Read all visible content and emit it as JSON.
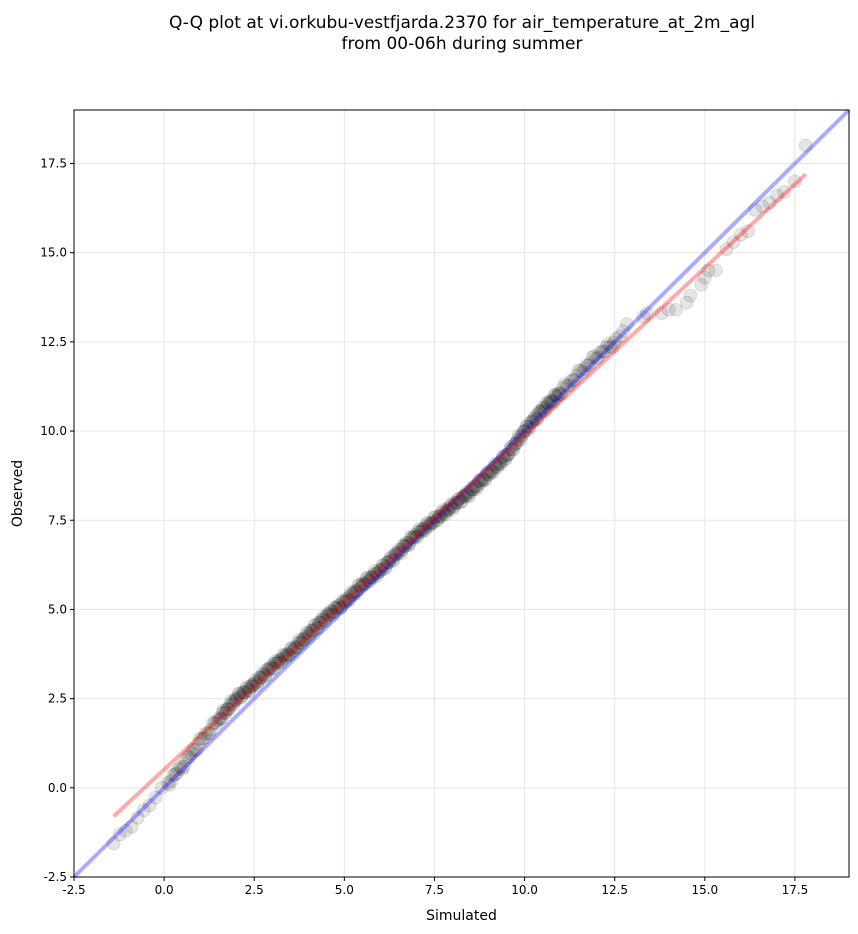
{
  "chart_data": {
    "type": "scatter",
    "title_line1": "Q-Q plot at vi.orkubu-vestfjarda.2370 for air_temperature_at_2m_agl",
    "title_line2": "from 00-06h during summer",
    "xlabel": "Simulated",
    "ylabel": "Observed",
    "xlim": [
      -2.5,
      19.0
    ],
    "ylim": [
      -2.5,
      19.0
    ],
    "xticks": [
      -2.5,
      0.0,
      2.5,
      5.0,
      7.5,
      10.0,
      12.5,
      15.0,
      17.5
    ],
    "yticks": [
      -2.5,
      0.0,
      2.5,
      5.0,
      7.5,
      10.0,
      12.5,
      15.0,
      17.5
    ],
    "grid": true,
    "colors": {
      "points": "#000000",
      "identity_line": "#0000ff",
      "fit_line": "#ff0000",
      "grid": "#e6e6e6"
    },
    "identity_line": {
      "x": [
        -2.5,
        19.0
      ],
      "y": [
        -2.5,
        19.0
      ]
    },
    "fit_line": {
      "x": [
        -1.4,
        17.8
      ],
      "y": [
        -0.8,
        17.2
      ]
    },
    "anchors": {
      "x": [
        -1.4,
        -1.0,
        -0.5,
        0.0,
        0.5,
        1.0,
        1.5,
        2.0,
        2.5,
        3.0,
        3.5,
        4.0,
        4.5,
        5.0,
        5.5,
        6.0,
        6.5,
        7.0,
        7.5,
        8.0,
        8.5,
        9.0,
        9.5,
        10.0,
        10.5,
        11.0,
        11.5,
        12.0,
        12.5,
        12.9
      ],
      "y": [
        -1.6,
        -1.1,
        -0.6,
        0.0,
        0.6,
        1.3,
        1.9,
        2.5,
        2.9,
        3.4,
        3.8,
        4.3,
        4.8,
        5.2,
        5.7,
        6.1,
        6.6,
        7.1,
        7.5,
        7.9,
        8.3,
        8.8,
        9.3,
        10.0,
        10.6,
        11.1,
        11.6,
        12.1,
        12.5,
        13.0
      ]
    },
    "tail_points": {
      "x": [
        13.3,
        13.4,
        13.8,
        14.0,
        14.2,
        14.5,
        14.6,
        14.9,
        15.0,
        15.1,
        15.3,
        15.6,
        15.8,
        16.0,
        16.2,
        16.4,
        16.6,
        16.8,
        17.0,
        17.2,
        17.5,
        17.8
      ],
      "y": [
        13.2,
        13.3,
        13.3,
        13.4,
        13.4,
        13.6,
        13.8,
        14.1,
        14.3,
        14.5,
        14.5,
        15.1,
        15.3,
        15.5,
        15.6,
        16.2,
        16.3,
        16.4,
        16.6,
        16.7,
        17.0,
        18.0
      ]
    }
  }
}
